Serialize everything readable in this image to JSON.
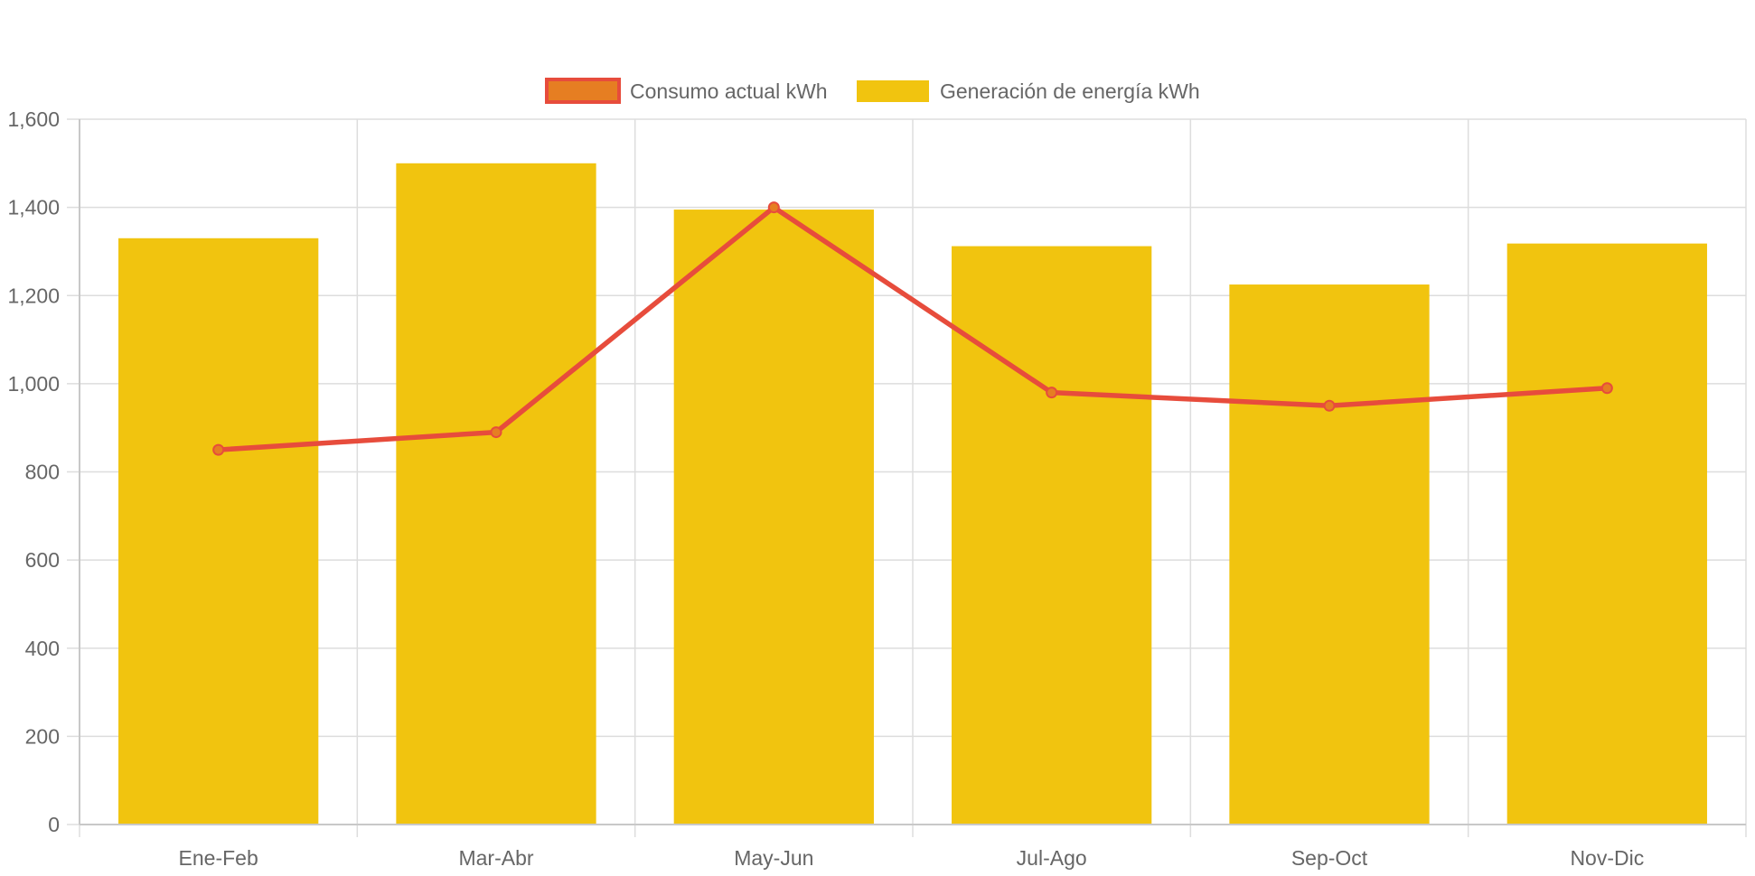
{
  "chart_data": {
    "type": "bar",
    "categories": [
      "Ene-Feb",
      "Mar-Abr",
      "May-Jun",
      "Jul-Ago",
      "Sep-Oct",
      "Nov-Dic"
    ],
    "series": [
      {
        "name": "Consumo actual kWh",
        "type": "line",
        "values": [
          850,
          890,
          1400,
          980,
          950,
          990
        ],
        "color": "#e74c3c",
        "point_fill": "#e67e22"
      },
      {
        "name": "Generación de energía kWh",
        "type": "bar",
        "values": [
          1330,
          1500,
          1395,
          1312,
          1225,
          1318
        ],
        "color": "#f1c40f"
      }
    ],
    "ylim": [
      0,
      1600
    ],
    "yticks": [
      0,
      200,
      400,
      600,
      800,
      1000,
      1200,
      1400,
      1600
    ],
    "ytick_labels": [
      "0",
      "200",
      "400",
      "600",
      "800",
      "1,000",
      "1,200",
      "1,400",
      "1,600"
    ],
    "grid": true,
    "legend_position": "top-center",
    "grid_color": "#dddddd",
    "axis_label_color": "#666666"
  }
}
